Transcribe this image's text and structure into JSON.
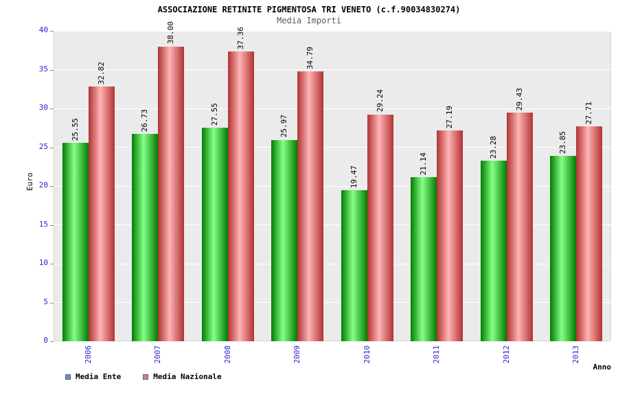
{
  "title": "ASSOCIAZIONE RETINITE PIGMENTOSA TRI VENETO (c.f.90034830274)",
  "subtitle": "Media Importi",
  "chart_data": {
    "type": "bar",
    "categories": [
      "2006",
      "2007",
      "2008",
      "2009",
      "2010",
      "2011",
      "2012",
      "2013"
    ],
    "series": [
      {
        "name": "Media Ente",
        "values": [
          25.55,
          26.73,
          27.55,
          25.97,
          19.47,
          21.14,
          23.28,
          23.85
        ],
        "labels": [
          "25.55",
          "26.73",
          "27.55",
          "25.97",
          "19.47",
          "21.14",
          "23.28",
          "23.85"
        ],
        "color_dark": "#007d00",
        "color_light": "#86ff86",
        "legend_color": "#6c8ccc"
      },
      {
        "name": "Media Nazionale",
        "values": [
          32.82,
          38.0,
          37.36,
          34.79,
          29.24,
          27.19,
          29.43,
          27.71
        ],
        "labels": [
          "32.82",
          "38.00",
          "37.36",
          "34.79",
          "29.24",
          "27.19",
          "29.43",
          "27.71"
        ],
        "color_dark": "#b23232",
        "color_light": "#ffb4b4",
        "legend_color": "#cc7c94"
      }
    ],
    "xlabel": "Anno",
    "ylabel": "Euro",
    "ylim": [
      0,
      40
    ],
    "yticks": [
      0,
      5,
      10,
      15,
      20,
      25,
      30,
      35,
      40
    ],
    "grid": true,
    "legend_position": "bottom-left"
  },
  "colors": {
    "axis_text": "#2424cc",
    "plot_bg": "#ebebeb",
    "grid_line": "#ffffff",
    "plot_border": "#d4d4d4",
    "value_label": "#000000",
    "title_text": "#000000",
    "subtitle_text": "#5a5a5a"
  }
}
